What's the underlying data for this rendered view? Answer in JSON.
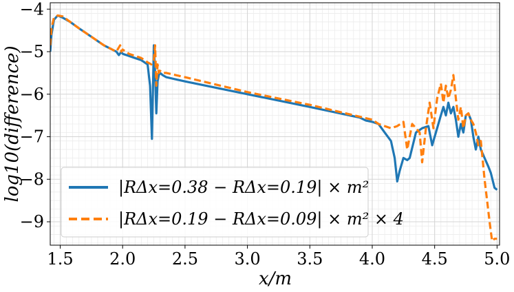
{
  "chart_data": {
    "type": "line",
    "xlabel": "x/m",
    "ylabel": "log10(difference)",
    "xlim": [
      1.42,
      5.02
    ],
    "ylim": [
      -9.55,
      -3.85
    ],
    "xticks": [
      1.5,
      2.0,
      2.5,
      3.0,
      3.5,
      4.0,
      4.5,
      5.0
    ],
    "xtick_labels": [
      "1.5",
      "2.0",
      "2.5",
      "3.0",
      "3.5",
      "4.0",
      "4.5",
      "5.0"
    ],
    "yticks": [
      -9,
      -8,
      -7,
      -6,
      -5,
      -4
    ],
    "ytick_labels": [
      "−9",
      "−8",
      "−7",
      "−6",
      "−5",
      "−4"
    ],
    "grid": true,
    "legend_position": "lower-left",
    "series": [
      {
        "name": "|RΔx=0.38 − RΔx=0.19| × m²",
        "color": "#1f77b4",
        "style": "solid",
        "x": [
          1.42,
          1.43,
          1.45,
          1.48,
          1.52,
          1.58,
          1.65,
          1.75,
          1.85,
          1.95,
          1.97,
          1.99,
          2.0,
          2.05,
          2.1,
          2.15,
          2.2,
          2.22,
          2.235,
          2.25,
          2.26,
          2.27,
          2.28,
          2.29,
          2.3,
          2.32,
          2.35,
          2.5,
          3.0,
          3.5,
          3.9,
          3.95,
          4.0,
          4.05,
          4.1,
          4.15,
          4.18,
          4.2,
          4.22,
          4.25,
          4.28,
          4.3,
          4.35,
          4.4,
          4.45,
          4.48,
          4.5,
          4.52,
          4.55,
          4.57,
          4.59,
          4.61,
          4.63,
          4.65,
          4.67,
          4.69,
          4.71,
          4.73,
          4.75,
          4.77,
          4.79,
          4.81,
          4.83,
          4.85,
          4.87,
          4.9,
          4.93,
          4.95,
          4.98,
          5.0
        ],
        "y": [
          -5.0,
          -4.6,
          -4.25,
          -4.15,
          -4.2,
          -4.3,
          -4.45,
          -4.65,
          -4.85,
          -5.0,
          -5.08,
          -5.0,
          -5.05,
          -5.1,
          -5.15,
          -5.2,
          -5.3,
          -5.8,
          -7.05,
          -4.85,
          -5.5,
          -6.45,
          -5.7,
          -5.55,
          -5.5,
          -5.55,
          -5.6,
          -5.7,
          -6.0,
          -6.3,
          -6.55,
          -6.62,
          -6.65,
          -6.7,
          -6.9,
          -7.1,
          -7.5,
          -8.05,
          -7.8,
          -7.5,
          -7.55,
          -7.5,
          -6.9,
          -6.8,
          -6.75,
          -7.2,
          -7.0,
          -6.8,
          -6.5,
          -6.3,
          -6.5,
          -6.2,
          -6.45,
          -6.3,
          -6.6,
          -7.0,
          -6.7,
          -6.9,
          -6.5,
          -6.45,
          -6.6,
          -7.0,
          -7.3,
          -7.0,
          -7.3,
          -7.5,
          -7.7,
          -7.85,
          -8.2,
          -8.25
        ]
      },
      {
        "name": "|RΔx=0.19 − RΔx=0.09| × m² × 4",
        "color": "#ff7f0e",
        "style": "dashed",
        "x": [
          1.42,
          1.43,
          1.45,
          1.48,
          1.52,
          1.58,
          1.65,
          1.75,
          1.85,
          1.95,
          1.98,
          1.99,
          2.0,
          2.05,
          2.1,
          2.15,
          2.2,
          2.23,
          2.25,
          2.26,
          2.27,
          2.28,
          2.29,
          2.3,
          2.32,
          2.35,
          2.5,
          3.0,
          3.5,
          4.0,
          4.05,
          4.1,
          4.15,
          4.2,
          4.25,
          4.28,
          4.3,
          4.32,
          4.35,
          4.38,
          4.4,
          4.43,
          4.46,
          4.49,
          4.52,
          4.55,
          4.57,
          4.59,
          4.61,
          4.63,
          4.65,
          4.67,
          4.69,
          4.71,
          4.73,
          4.75,
          4.77,
          4.79,
          4.81,
          4.83,
          4.85,
          4.87,
          4.9,
          4.92,
          4.94,
          4.96,
          4.98,
          5.0
        ],
        "y": [
          -4.85,
          -4.45,
          -4.2,
          -4.15,
          -4.17,
          -4.3,
          -4.45,
          -4.65,
          -4.85,
          -5.0,
          -4.85,
          -5.0,
          -4.95,
          -5.05,
          -5.1,
          -5.15,
          -5.25,
          -5.3,
          -5.2,
          -4.85,
          -5.8,
          -5.3,
          -5.5,
          -5.45,
          -5.5,
          -5.5,
          -5.6,
          -5.95,
          -6.25,
          -6.6,
          -6.7,
          -6.75,
          -6.8,
          -6.75,
          -6.65,
          -7.3,
          -7.0,
          -6.7,
          -6.8,
          -6.9,
          -7.6,
          -6.8,
          -6.2,
          -6.8,
          -6.1,
          -5.75,
          -6.2,
          -5.8,
          -6.1,
          -5.9,
          -5.55,
          -6.1,
          -6.6,
          -6.3,
          -6.8,
          -6.5,
          -6.45,
          -6.6,
          -6.7,
          -6.9,
          -7.2,
          -7.1,
          -8.0,
          -8.5,
          -9.0,
          -9.45,
          -9.4,
          -9.4
        ]
      }
    ]
  }
}
